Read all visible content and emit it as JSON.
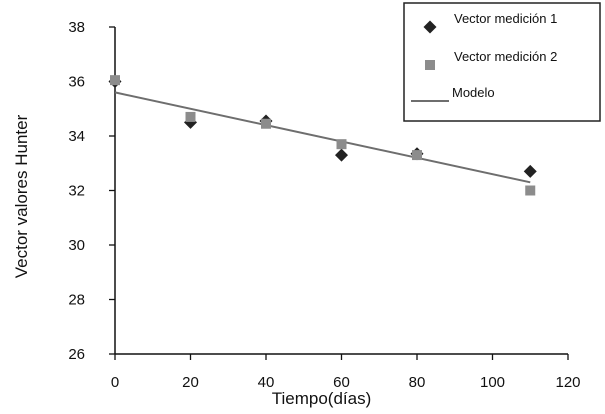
{
  "chart_data": {
    "type": "scatter",
    "xlabel": "Tiempo(días)",
    "ylabel": "Vector valores Hunter",
    "xlim": [
      0,
      120
    ],
    "ylim": [
      26,
      38
    ],
    "xticks": [
      0,
      20,
      40,
      60,
      80,
      100,
      120
    ],
    "yticks": [
      26,
      28,
      30,
      32,
      34,
      36,
      38
    ],
    "grid": false,
    "legend_position": "top-right",
    "series": [
      {
        "name": "Vector medición 1",
        "marker": "diamond",
        "color": "#222222",
        "points": [
          {
            "x": 0,
            "y": 36.0
          },
          {
            "x": 20,
            "y": 34.5
          },
          {
            "x": 40,
            "y": 34.55
          },
          {
            "x": 60,
            "y": 33.3
          },
          {
            "x": 80,
            "y": 33.35
          },
          {
            "x": 110,
            "y": 32.7
          }
        ]
      },
      {
        "name": "Vector medición 2",
        "marker": "square",
        "color": "#8c8c8c",
        "points": [
          {
            "x": 0,
            "y": 36.05
          },
          {
            "x": 20,
            "y": 34.7
          },
          {
            "x": 40,
            "y": 34.45
          },
          {
            "x": 60,
            "y": 33.7
          },
          {
            "x": 80,
            "y": 33.3
          },
          {
            "x": 110,
            "y": 32.0
          }
        ]
      },
      {
        "name": "Modelo",
        "type": "line",
        "color": "#6e6e6e",
        "points": [
          {
            "x": 0,
            "y": 35.6
          },
          {
            "x": 110,
            "y": 32.3
          }
        ]
      }
    ]
  }
}
